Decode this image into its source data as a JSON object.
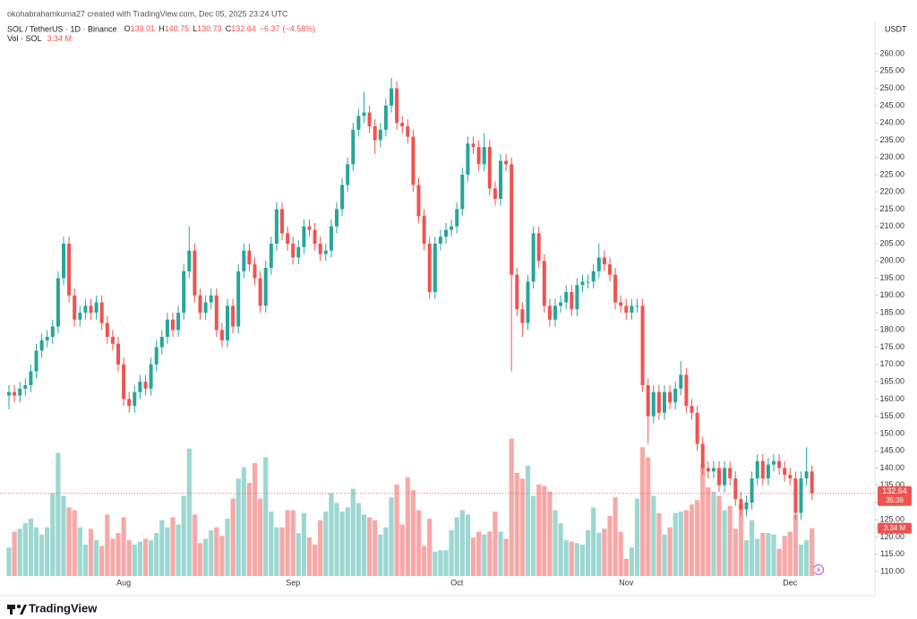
{
  "header": "okohabrahamkuma27 created with TradingView.com, Dec 05, 2025 23:24 UTC",
  "brand": "TradingView",
  "chart_data": {
    "type": "candlestick",
    "title": "SOL / TetherUS · 1D · Binance",
    "ohlc_legend": [
      {
        "label": "O",
        "value": 139.01
      },
      {
        "label": "H",
        "value": 140.75
      },
      {
        "label": "L",
        "value": 130.73
      },
      {
        "label": "C",
        "value": 132.64
      }
    ],
    "change": {
      "value": -6.37,
      "label": "−6.37"
    },
    "change_pct": {
      "value": -4.58,
      "label": "(−4.58%)"
    },
    "currency": "USDT",
    "countdown": "35:39",
    "up_color": "#26a69a",
    "down_color": "#ef5350",
    "volume_up_color": "#9dd7d1",
    "volume_down_color": "#f6a9a7",
    "categories": [
      null,
      null,
      null,
      null,
      null,
      null,
      null,
      null,
      null,
      null,
      null,
      null,
      null,
      null,
      null,
      null,
      null,
      null,
      null,
      null,
      null,
      "Aug",
      null,
      null,
      null,
      null,
      null,
      null,
      null,
      null,
      null,
      null,
      null,
      null,
      null,
      null,
      null,
      null,
      null,
      null,
      null,
      null,
      null,
      null,
      null,
      null,
      null,
      null,
      null,
      null,
      null,
      null,
      "Sep",
      null,
      null,
      null,
      null,
      null,
      null,
      null,
      null,
      null,
      null,
      null,
      null,
      null,
      null,
      null,
      null,
      null,
      null,
      null,
      null,
      null,
      null,
      null,
      null,
      null,
      null,
      null,
      null,
      null,
      "Oct",
      null,
      null,
      null,
      null,
      null,
      null,
      null,
      null,
      null,
      null,
      null,
      null,
      null,
      null,
      null,
      null,
      null,
      null,
      null,
      null,
      null,
      null,
      null,
      null,
      null,
      null,
      null,
      null,
      null,
      null,
      "Nov",
      null,
      null,
      null,
      null,
      null,
      null,
      null,
      null,
      null,
      null,
      null,
      null,
      null,
      null,
      null,
      null,
      null,
      null,
      null,
      null,
      null,
      null,
      null,
      null,
      null,
      null,
      null,
      null,
      null,
      "Dec",
      null,
      null,
      null,
      null
    ],
    "open": [
      161,
      162,
      161,
      163,
      164,
      168,
      174,
      177,
      178,
      181,
      195,
      205,
      190,
      183,
      185,
      187,
      185,
      188,
      182,
      178,
      176,
      170,
      160,
      158,
      162,
      165,
      163,
      170,
      175,
      178,
      183,
      180,
      185,
      197,
      203,
      190,
      185,
      188,
      190,
      180,
      177,
      187,
      181,
      197,
      203,
      199,
      195,
      187,
      198,
      205,
      215,
      208,
      205,
      201,
      204,
      210,
      209,
      205,
      202,
      203,
      210,
      215,
      222,
      228,
      238,
      242,
      243,
      239,
      235,
      238,
      245,
      250,
      240,
      239,
      236,
      222,
      213,
      205,
      191,
      205,
      207,
      209,
      210,
      215,
      225,
      234,
      233,
      228,
      233,
      221,
      218,
      229,
      228,
      196,
      186,
      182,
      194,
      208,
      200,
      187,
      183,
      187,
      188,
      191,
      186,
      193,
      194,
      194,
      197,
      201,
      199,
      196,
      188,
      187,
      185,
      187,
      187,
      164,
      155,
      162,
      156,
      162,
      159,
      163,
      167,
      158,
      156,
      147,
      140,
      139,
      140,
      135,
      140,
      137,
      131,
      128,
      130,
      137,
      142,
      137,
      141,
      142,
      140,
      138,
      137,
      127,
      137,
      139.01
    ],
    "high": [
      164,
      164,
      165,
      166,
      170,
      176,
      179,
      180,
      183,
      197,
      207,
      207,
      192,
      187,
      189,
      189,
      190,
      190,
      184,
      180,
      178,
      172,
      162,
      164,
      167,
      167,
      172,
      177,
      180,
      185,
      185,
      187,
      199,
      210,
      205,
      192,
      190,
      192,
      192,
      182,
      189,
      189,
      199,
      205,
      205,
      201,
      197,
      200,
      207,
      217,
      217,
      210,
      207,
      206,
      212,
      212,
      211,
      207,
      205,
      212,
      217,
      224,
      230,
      240,
      244,
      249,
      245,
      241,
      240,
      247,
      253,
      252,
      242,
      241,
      238,
      224,
      215,
      207,
      207,
      209,
      211,
      212,
      217,
      227,
      236,
      236,
      235,
      237,
      235,
      223,
      231,
      231,
      230,
      198,
      188,
      196,
      210,
      210,
      202,
      189,
      189,
      190,
      193,
      193,
      195,
      196,
      196,
      199,
      205,
      203,
      201,
      198,
      190,
      189,
      189,
      189,
      189,
      166,
      164,
      164,
      164,
      164,
      165,
      171,
      169,
      160,
      158,
      149,
      142,
      142,
      142,
      142,
      142,
      139,
      133,
      132,
      139,
      144,
      144,
      143,
      144,
      144,
      142,
      140,
      139,
      139,
      146,
      140.75
    ],
    "low": [
      157,
      159,
      159,
      161,
      162,
      166,
      172,
      175,
      176,
      179,
      193,
      188,
      181,
      181,
      183,
      183,
      183,
      180,
      176,
      174,
      168,
      158,
      156,
      156,
      160,
      161,
      161,
      168,
      173,
      176,
      178,
      178,
      183,
      195,
      188,
      183,
      183,
      186,
      178,
      175,
      175,
      179,
      179,
      195,
      197,
      193,
      185,
      185,
      196,
      203,
      206,
      203,
      199,
      199,
      202,
      207,
      203,
      200,
      200,
      201,
      208,
      213,
      220,
      226,
      236,
      240,
      237,
      231,
      233,
      236,
      243,
      238,
      237,
      234,
      220,
      211,
      203,
      189,
      189,
      203,
      205,
      207,
      208,
      213,
      223,
      231,
      226,
      226,
      219,
      216,
      216,
      226,
      168,
      184,
      178,
      180,
      192,
      198,
      185,
      181,
      181,
      185,
      186,
      184,
      184,
      191,
      192,
      192,
      195,
      197,
      194,
      186,
      185,
      183,
      183,
      185,
      162,
      147,
      153,
      154,
      154,
      157,
      157,
      161,
      156,
      154,
      145,
      138,
      137,
      137,
      133,
      133,
      135,
      129,
      126,
      126,
      128,
      135,
      135,
      135,
      139,
      138,
      136,
      135,
      125,
      125,
      135,
      130.73
    ],
    "close": [
      162,
      161,
      163,
      164,
      168,
      174,
      177,
      178,
      181,
      195,
      205,
      190,
      183,
      185,
      187,
      185,
      188,
      182,
      178,
      176,
      170,
      160,
      158,
      162,
      165,
      163,
      170,
      175,
      178,
      183,
      180,
      185,
      197,
      203,
      190,
      185,
      188,
      190,
      180,
      177,
      187,
      181,
      197,
      203,
      199,
      195,
      187,
      198,
      205,
      215,
      208,
      205,
      201,
      204,
      210,
      209,
      205,
      202,
      203,
      210,
      215,
      222,
      228,
      238,
      242,
      243,
      239,
      235,
      238,
      245,
      250,
      240,
      239,
      236,
      222,
      213,
      205,
      191,
      205,
      207,
      209,
      210,
      215,
      225,
      234,
      233,
      228,
      233,
      221,
      218,
      229,
      228,
      196,
      186,
      182,
      194,
      208,
      200,
      187,
      183,
      187,
      188,
      191,
      186,
      193,
      194,
      194,
      197,
      201,
      199,
      196,
      188,
      187,
      185,
      187,
      187,
      164,
      155,
      162,
      156,
      162,
      159,
      163,
      167,
      158,
      156,
      147,
      140,
      139,
      140,
      135,
      140,
      137,
      131,
      128,
      130,
      137,
      142,
      137,
      141,
      142,
      140,
      138,
      137,
      127,
      137,
      139,
      132.64
    ],
    "volume": {
      "name": "Vol · SOL",
      "axis": "y2",
      "last_label": "3.34 M",
      "values": [
        2.0,
        3.1,
        3.3,
        3.7,
        4.0,
        3.4,
        2.9,
        3.4,
        5.8,
        8.6,
        5.6,
        4.8,
        4.6,
        3.4,
        2.2,
        3.3,
        2.5,
        2.1,
        4.3,
        2.6,
        3.0,
        4.1,
        2.5,
        2.2,
        2.4,
        2.6,
        2.5,
        3.0,
        3.9,
        3.4,
        4.1,
        3.6,
        5.6,
        8.9,
        4.3,
        2.3,
        2.6,
        3.2,
        3.4,
        2.8,
        4.0,
        5.4,
        6.8,
        7.6,
        6.5,
        7.9,
        5.4,
        8.3,
        4.5,
        3.4,
        3.4,
        4.6,
        4.6,
        3.0,
        4.4,
        2.7,
        2.2,
        3.9,
        4.5,
        5.8,
        5.1,
        4.5,
        4.8,
        6.1,
        5.1,
        4.3,
        4.1,
        3.9,
        2.9,
        3.4,
        5.5,
        6.4,
        3.6,
        6.9,
        6.0,
        4.6,
        2.1,
        4.0,
        1.7,
        1.8,
        1.8,
        3.2,
        4.1,
        4.6,
        4.3,
        2.7,
        3.1,
        2.9,
        3.1,
        4.5,
        3.1,
        2.6,
        9.6,
        7.2,
        6.8,
        7.7,
        5.6,
        6.4,
        6.3,
        5.9,
        4.6,
        3.7,
        2.5,
        2.4,
        2.3,
        2.2,
        3.2,
        4.8,
        3.0,
        3.3,
        4.2,
        5.5,
        3.1,
        1.2,
        2.0,
        5.4,
        9.0,
        8.3,
        5.6,
        4.4,
        2.9,
        3.4,
        4.4,
        4.5,
        4.6,
        5.0,
        5.3,
        7.8,
        6.2,
        5.9,
        5.6,
        4.6,
        4.9,
        3.3,
        5.0,
        2.5,
        3.9,
        2.6,
        3.0,
        3.0,
        2.9,
        1.9,
        2.8,
        3.1,
        4.3,
        2.2,
        2.5,
        3.34
      ]
    },
    "ylim": [
      104.3,
      262.1
    ],
    "y2lim": [
      0,
      37
    ],
    "yticks": [
      {
        "value": 110,
        "label": "110.00"
      },
      {
        "value": 115,
        "label": "115.00"
      },
      {
        "value": 120,
        "label": "120.00"
      },
      {
        "value": 125,
        "label": "125.00"
      },
      {
        "value": 130,
        "label": "130.00"
      },
      {
        "value": 135,
        "label": "135.00"
      },
      {
        "value": 140,
        "label": "140.00"
      },
      {
        "value": 145,
        "label": "145.00"
      },
      {
        "value": 150,
        "label": "150.00"
      },
      {
        "value": 155,
        "label": "155.00"
      },
      {
        "value": 160,
        "label": "160.00"
      },
      {
        "value": 165,
        "label": "165.00"
      },
      {
        "value": 170,
        "label": "170.00"
      },
      {
        "value": 175,
        "label": "175.00"
      },
      {
        "value": 180,
        "label": "180.00"
      },
      {
        "value": 185,
        "label": "185.00"
      },
      {
        "value": 190,
        "label": "190.00"
      },
      {
        "value": 195,
        "label": "195.00"
      },
      {
        "value": 200,
        "label": "200.00"
      },
      {
        "value": 205,
        "label": "205.00"
      },
      {
        "value": 210,
        "label": "210.00"
      },
      {
        "value": 215,
        "label": "215.00"
      },
      {
        "value": 220,
        "label": "220.00"
      },
      {
        "value": 225,
        "label": "225.00"
      },
      {
        "value": 230,
        "label": "230.00"
      },
      {
        "value": 235,
        "label": "235.00"
      },
      {
        "value": 240,
        "label": "240.00"
      },
      {
        "value": 245,
        "label": "245.00"
      },
      {
        "value": 250,
        "label": "250.00"
      },
      {
        "value": 255,
        "label": "255.00"
      },
      {
        "value": 260,
        "label": "260.00"
      }
    ],
    "grid": false
  }
}
